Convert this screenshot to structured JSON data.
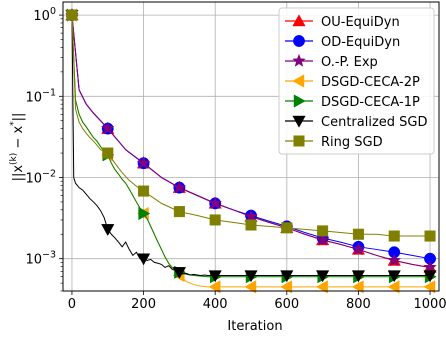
{
  "chart_data": {
    "type": "line",
    "xlabel": "Iteration",
    "ylabel_parts": [
      "||x",
      "(k)",
      " − x",
      "*",
      "||"
    ],
    "xlim": [
      -25,
      1025
    ],
    "ylim": [
      0.0004,
      1.45
    ],
    "yscale": "log",
    "grid": true,
    "legend_position": "top-right",
    "x_ticks": [
      0,
      200,
      400,
      600,
      800,
      1000
    ],
    "x_tick_labels": [
      "0",
      "200",
      "400",
      "600",
      "800",
      "1000"
    ],
    "y_ticks": [
      0.001,
      0.01,
      0.1,
      1
    ],
    "y_tick_base": [
      "10",
      "10",
      "10",
      "10"
    ],
    "y_tick_exp": [
      "−3",
      "−2",
      "−1",
      "0"
    ],
    "series": [
      {
        "name": "OU-EquiDyn",
        "color": "#ff0000",
        "marker": "triangle",
        "line_x": [
          0,
          20,
          40,
          60,
          80,
          100,
          150,
          200,
          250,
          300,
          350,
          400,
          450,
          500,
          550,
          600,
          650,
          700,
          750,
          800,
          850,
          900,
          950,
          1000
        ],
        "line_y": [
          1.0,
          0.12,
          0.08,
          0.062,
          0.05,
          0.04,
          0.022,
          0.015,
          0.01,
          0.0075,
          0.006,
          0.0048,
          0.004,
          0.0033,
          0.0028,
          0.0024,
          0.002,
          0.0017,
          0.0015,
          0.0013,
          0.0011,
          0.00095,
          0.00085,
          0.00078
        ],
        "marker_x": [
          0,
          100,
          200,
          300,
          400,
          500,
          600,
          700,
          800,
          900,
          1000
        ],
        "marker_y": [
          1.0,
          0.04,
          0.015,
          0.0075,
          0.0048,
          0.0033,
          0.0024,
          0.0017,
          0.0013,
          0.00095,
          0.00078
        ]
      },
      {
        "name": "OD-EquiDyn",
        "color": "#0000ff",
        "marker": "circle",
        "line_x": [
          0,
          20,
          40,
          60,
          80,
          100,
          150,
          200,
          250,
          300,
          350,
          400,
          450,
          500,
          550,
          600,
          650,
          700,
          750,
          800,
          850,
          900,
          950,
          1000
        ],
        "line_y": [
          1.0,
          0.12,
          0.08,
          0.062,
          0.05,
          0.04,
          0.022,
          0.015,
          0.01,
          0.0075,
          0.006,
          0.0048,
          0.004,
          0.0034,
          0.0029,
          0.0025,
          0.0021,
          0.0018,
          0.0016,
          0.0014,
          0.0013,
          0.0012,
          0.0011,
          0.001
        ],
        "marker_x": [
          0,
          100,
          200,
          300,
          400,
          500,
          600,
          700,
          800,
          900,
          1000
        ],
        "marker_y": [
          1.0,
          0.04,
          0.015,
          0.0075,
          0.0048,
          0.0034,
          0.0025,
          0.0018,
          0.0014,
          0.0012,
          0.001
        ]
      },
      {
        "name": "O.-P. Exp",
        "color": "#800080",
        "marker": "star",
        "line_x": [
          0,
          20,
          40,
          60,
          80,
          100,
          150,
          200,
          250,
          300,
          350,
          400,
          450,
          500,
          550,
          600,
          650,
          700,
          750,
          800,
          850,
          900,
          950,
          1000
        ],
        "line_y": [
          1.0,
          0.12,
          0.08,
          0.062,
          0.05,
          0.04,
          0.022,
          0.015,
          0.01,
          0.0075,
          0.006,
          0.0048,
          0.004,
          0.0033,
          0.0028,
          0.0024,
          0.002,
          0.0017,
          0.0015,
          0.0013,
          0.0011,
          0.00095,
          0.00085,
          0.00078
        ],
        "marker_x": [
          0,
          100,
          200,
          300,
          400,
          500,
          600,
          700,
          800,
          900,
          1000
        ],
        "marker_y": [
          1.0,
          0.04,
          0.015,
          0.0075,
          0.0048,
          0.0033,
          0.0024,
          0.0017,
          0.0013,
          0.00095,
          0.00078
        ]
      },
      {
        "name": "DSGD-CECA-2P",
        "color": "#ffa500",
        "marker": "triangle-left",
        "line_x": [
          0,
          10,
          20,
          30,
          40,
          50,
          60,
          70,
          80,
          90,
          100,
          110,
          120,
          130,
          140,
          150,
          160,
          170,
          180,
          190,
          200,
          210,
          220,
          230,
          240,
          250,
          260,
          270,
          280,
          290,
          300,
          320,
          340,
          360,
          380,
          400,
          500,
          600,
          700,
          800,
          900,
          1000
        ],
        "line_y": [
          1.0,
          0.09,
          0.06,
          0.048,
          0.042,
          0.036,
          0.031,
          0.028,
          0.024,
          0.021,
          0.019,
          0.015,
          0.0125,
          0.011,
          0.0095,
          0.0085,
          0.0072,
          0.006,
          0.005,
          0.0042,
          0.0036,
          0.0031,
          0.0025,
          0.002,
          0.0016,
          0.0013,
          0.00105,
          0.00088,
          0.00075,
          0.00068,
          0.00062,
          0.00052,
          0.00048,
          0.00046,
          0.00045,
          0.00045,
          0.00045,
          0.00045,
          0.00045,
          0.00045,
          0.00045,
          0.00045
        ],
        "marker_x": [
          0,
          100,
          200,
          300,
          400,
          500,
          600,
          700,
          800,
          900,
          1000
        ],
        "marker_y": [
          1.0,
          0.019,
          0.0036,
          0.00062,
          0.00045,
          0.00045,
          0.00045,
          0.00045,
          0.00045,
          0.00045,
          0.00045
        ]
      },
      {
        "name": "DSGD-CECA-1P",
        "color": "#008000",
        "marker": "triangle-right",
        "line_x": [
          0,
          10,
          20,
          30,
          40,
          50,
          60,
          70,
          80,
          90,
          100,
          110,
          120,
          130,
          140,
          150,
          160,
          170,
          180,
          190,
          200,
          210,
          220,
          230,
          240,
          250,
          260,
          270,
          280,
          290,
          300,
          320,
          340,
          360,
          380,
          400,
          500,
          600,
          700,
          800,
          900,
          1000
        ],
        "line_y": [
          1.0,
          0.09,
          0.06,
          0.048,
          0.042,
          0.036,
          0.031,
          0.028,
          0.024,
          0.021,
          0.019,
          0.015,
          0.0125,
          0.011,
          0.0095,
          0.0085,
          0.0072,
          0.006,
          0.005,
          0.0042,
          0.0036,
          0.0031,
          0.0025,
          0.002,
          0.0016,
          0.0013,
          0.00105,
          0.00088,
          0.00078,
          0.00072,
          0.00068,
          0.00064,
          0.00062,
          0.00061,
          0.0006,
          0.0006,
          0.0006,
          0.0006,
          0.0006,
          0.0006,
          0.0006,
          0.0006
        ],
        "marker_x": [
          0,
          100,
          200,
          300,
          400,
          500,
          600,
          700,
          800,
          900,
          1000
        ],
        "marker_y": [
          1.0,
          0.019,
          0.0036,
          0.00068,
          0.0006,
          0.0006,
          0.0006,
          0.0006,
          0.0006,
          0.0006,
          0.0006
        ]
      },
      {
        "name": "Centralized SGD",
        "color": "#000000",
        "marker": "triangle-down",
        "line_x": [
          0,
          5,
          10,
          20,
          30,
          40,
          50,
          60,
          70,
          80,
          90,
          100,
          110,
          120,
          130,
          140,
          150,
          160,
          170,
          180,
          190,
          200,
          210,
          220,
          230,
          240,
          250,
          260,
          270,
          280,
          290,
          300,
          310,
          320,
          330,
          340,
          350,
          360,
          370,
          380,
          390,
          400,
          500,
          600,
          700,
          800,
          900,
          1000
        ],
        "line_y": [
          1.0,
          0.01,
          0.0085,
          0.0075,
          0.007,
          0.0062,
          0.0055,
          0.005,
          0.0045,
          0.0039,
          0.0032,
          0.0023,
          0.002,
          0.0018,
          0.0016,
          0.0014,
          0.0016,
          0.0013,
          0.0011,
          0.0012,
          0.001,
          0.001,
          0.00095,
          0.00098,
          0.0009,
          0.00088,
          0.00085,
          0.00078,
          0.00082,
          0.00074,
          0.00072,
          0.00068,
          0.00065,
          0.00066,
          0.00063,
          0.00064,
          0.00063,
          0.00062,
          0.00063,
          0.00062,
          0.00062,
          0.00062,
          0.00062,
          0.00062,
          0.00062,
          0.00062,
          0.00062,
          0.00062
        ],
        "marker_x": [
          0,
          100,
          200,
          300,
          400,
          500,
          600,
          700,
          800,
          900,
          1000
        ],
        "marker_y": [
          1.0,
          0.0023,
          0.001,
          0.00068,
          0.00062,
          0.00062,
          0.00062,
          0.00062,
          0.00062,
          0.00062,
          0.00062
        ]
      },
      {
        "name": "Ring SGD",
        "color": "#808000",
        "marker": "square",
        "line_x": [
          0,
          10,
          20,
          30,
          40,
          50,
          60,
          70,
          80,
          90,
          100,
          120,
          140,
          160,
          180,
          200,
          250,
          300,
          350,
          400,
          450,
          500,
          550,
          600,
          650,
          700,
          750,
          800,
          850,
          900,
          950,
          1000
        ],
        "line_y": [
          1.0,
          0.07,
          0.048,
          0.04,
          0.035,
          0.031,
          0.028,
          0.025,
          0.022,
          0.021,
          0.02,
          0.015,
          0.0115,
          0.0092,
          0.0078,
          0.0068,
          0.0048,
          0.0038,
          0.0034,
          0.003,
          0.0028,
          0.0026,
          0.0025,
          0.0024,
          0.0023,
          0.0022,
          0.0021,
          0.002,
          0.002,
          0.0019,
          0.0019,
          0.0019
        ],
        "marker_x": [
          0,
          100,
          200,
          300,
          400,
          500,
          600,
          700,
          800,
          900,
          1000
        ],
        "marker_y": [
          1.0,
          0.02,
          0.0068,
          0.0038,
          0.003,
          0.0026,
          0.0024,
          0.0022,
          0.002,
          0.0019,
          0.0019
        ]
      }
    ]
  }
}
